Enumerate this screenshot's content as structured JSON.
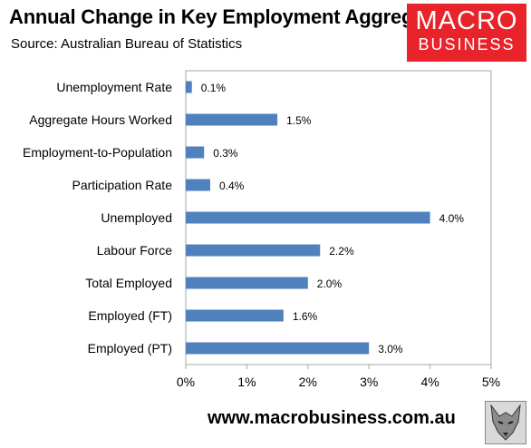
{
  "header": {
    "title": "Annual Change in Key Employment Aggregates",
    "subtitle": "Source: Australian Bureau of Statistics"
  },
  "logo": {
    "line1": "MACRO",
    "line2": "BUSINESS",
    "color": "#e8232a"
  },
  "footer": {
    "url": "www.macrobusiness.com.au",
    "icon": "wolf-head-icon"
  },
  "chart_data": {
    "type": "bar",
    "orientation": "horizontal",
    "categories": [
      "Unemployment Rate",
      "Aggregate Hours Worked",
      "Employment-to-Population",
      "Participation Rate",
      "Unemployed",
      "Labour Force",
      "Total Employed",
      "Employed (FT)",
      "Employed (PT)"
    ],
    "values": [
      0.1,
      1.5,
      0.3,
      0.4,
      4.0,
      2.2,
      2.0,
      1.6,
      3.0
    ],
    "data_labels": [
      "0.1%",
      "1.5%",
      "0.3%",
      "0.4%",
      "4.0%",
      "2.2%",
      "2.0%",
      "1.6%",
      "3.0%"
    ],
    "x_ticks": [
      0,
      1,
      2,
      3,
      4,
      5
    ],
    "x_tick_labels": [
      "0%",
      "1%",
      "2%",
      "3%",
      "4%",
      "5%"
    ],
    "xlim": [
      0,
      5
    ],
    "grid": false,
    "bar_color": "#4f81bd"
  }
}
